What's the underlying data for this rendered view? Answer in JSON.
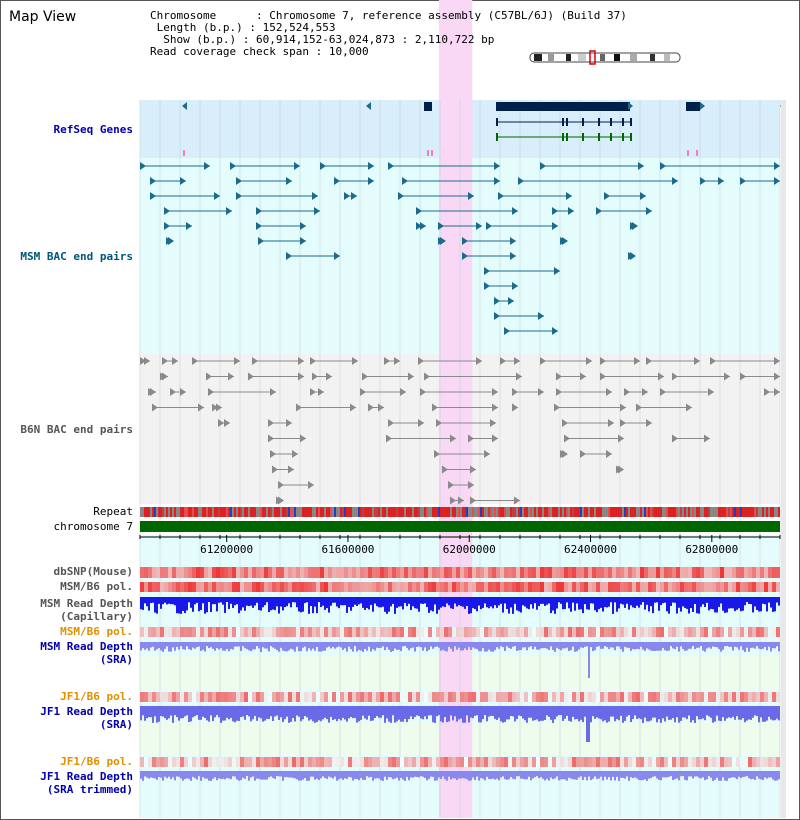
{
  "title": "Map View",
  "info": {
    "chromosome_label": "Chromosome",
    "chromosome_value": "Chromosome 7, reference assembly (C57BL/6J) (Build 37)",
    "length_label": "Length (b.p.)",
    "length_value": "152,524,553",
    "show_label": "Show (b.p.)",
    "show_value": "60,914,152-63,024,873 : 2,110,722 bp",
    "coverage_label": "Read coverage check span",
    "coverage_value": "10,000"
  },
  "tracks": {
    "refseq": "RefSeq Genes",
    "msm_bac": "MSM BAC end pairs",
    "b6n_bac": "B6N BAC end pairs",
    "repeat": "Repeat",
    "chromosome": "chromosome 7",
    "dbsnp": "dbSNP(Mouse)",
    "msm_b6_pol": "MSM/B6 pol.",
    "msm_depth_cap_1": "MSM Read Depth",
    "msm_depth_cap_2": "(Capillary)",
    "msm_b6_pol_sra": "MSM/B6 pol.",
    "msm_depth_sra_1": "MSM Read Depth",
    "msm_depth_sra_2": "(SRA)",
    "jf1_b6_pol": "JF1/B6 pol.",
    "jf1_depth_sra_1": "JF1 Read Depth",
    "jf1_depth_sra_2": "(SRA)",
    "jf1_b6_pol_trim": "JF1/B6 pol.",
    "jf1_depth_trim_1": "JF1 Read Depth",
    "jf1_depth_trim_2": "(SRA trimmed)"
  },
  "axis": {
    "ticks": [
      "61200000",
      "61600000",
      "62000000",
      "62400000",
      "62800000"
    ]
  },
  "highlight_region": {
    "start_bp": 61900000,
    "end_bp": 62010000
  },
  "colors": {
    "refseq_bg": "#d8eefa",
    "msm_bg": "#e4fcfc",
    "b6n_bg": "#f2f2f2",
    "highlight": "#f8d8f4",
    "gene": "#00204a",
    "msm_pair": "#1c6a8c",
    "b6n_pair": "#8a8a8a",
    "chromosome": "#006600",
    "depth": "#2020ee",
    "pol": "#ee3030"
  }
}
